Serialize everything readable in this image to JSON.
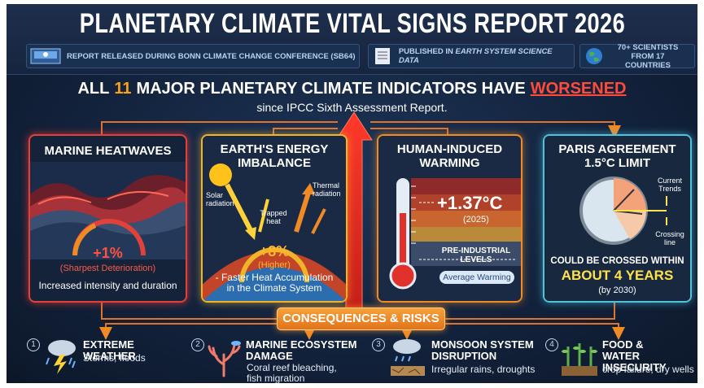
{
  "header": {
    "title": "PLANETARY CLIMATE VITAL SIGNS REPORT 2026",
    "badges": [
      {
        "text": "REPORT RELEASED DURING BONN CLIMATE CHANGE CONFERENCE (SB64)"
      },
      {
        "prefix": "PUBLISHED IN",
        "journal": "EARTH SYSTEM SCIENCE DATA"
      },
      {
        "text": "70+ SCIENTISTS FROM 17 COUNTRIES"
      }
    ]
  },
  "headline": {
    "parts": [
      "ALL",
      "11",
      "MAJOR PLANETARY CLIMATE INDICATORS HAVE",
      "WORSENED"
    ],
    "subtitle": "since IPCC Sixth Assessment Report."
  },
  "panels": [
    {
      "title": "MARINE HEATWAVES",
      "value": "+1%",
      "note": "(Sharpest Deterioration)",
      "description": "Increased intensity and duration"
    },
    {
      "title": "EARTH'S ENERGY IMBALANCE",
      "labels": [
        "Solar radiation",
        "Trapped heat",
        "Thermal radiation"
      ],
      "value": "+8%",
      "note": "(Higher)",
      "description": "- Faster Heat Accumulation in the Climate System"
    },
    {
      "title": "HUMAN-INDUCED WARMING",
      "value": "+1.37°C",
      "note": "(2025)",
      "baseline": "PRE-INDUSTRIAL LEVELS",
      "pill": "Average Warming"
    },
    {
      "title": "PARIS AGREEMENT 1.5°C LIMIT",
      "labels": [
        "Current Trends",
        "Crossing line"
      ],
      "description": "COULD BE CROSSED WITHIN",
      "value": "ABOUT 4 YEARS",
      "note": "(by 2030)"
    }
  ],
  "consequences": {
    "title": "CONSEQUENCES & RISKS",
    "items": [
      {
        "number": 1,
        "title": "EXTREME WEATHER",
        "description": "Storms, floods"
      },
      {
        "number": 2,
        "title": "MARINE ECOSYSTEM DAMAGE",
        "description": "Coral reef bleaching, fish migration"
      },
      {
        "number": 3,
        "title": "MONSOON SYSTEM DISRUPTION",
        "description": "Irregular rains, droughts"
      },
      {
        "number": 4,
        "title": "FOOD & WATER INSECURITY",
        "description": "crop failure, dry wells"
      }
    ]
  }
}
